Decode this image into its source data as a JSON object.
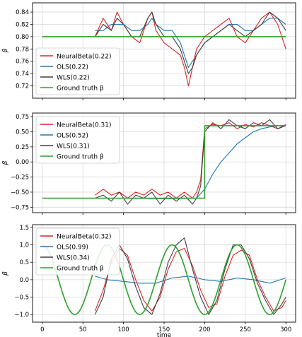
{
  "figure": {
    "xlabel": "time",
    "ylabel": "β",
    "colors": {
      "neural": "#d62728",
      "ols": "#1f77b4",
      "wls": "#3f3f3f",
      "truth": "#2ca02c",
      "grid": "#d9d9d9",
      "frame": "#000000"
    }
  },
  "chart_data": [
    {
      "type": "line",
      "xlim": [
        -12,
        312
      ],
      "ylim": [
        0.7,
        0.855
      ],
      "xticks": [
        0,
        50,
        100,
        150,
        200,
        250,
        300
      ],
      "yticks": [
        0.72,
        0.74,
        0.76,
        0.78,
        0.8,
        0.82,
        0.84
      ],
      "ytick_labels": [
        "0.72",
        "0.74",
        "0.76",
        "0.78",
        "0.80",
        "0.82",
        "0.84"
      ],
      "grid": true,
      "legend_placement": "lower-left",
      "ylabel": "β",
      "series": [
        {
          "name": "NeuralBeta(0.22)",
          "color_key": "neural",
          "x": [
            65,
            75,
            85,
            92,
            100,
            110,
            120,
            130,
            135,
            140,
            150,
            160,
            170,
            175,
            180,
            185,
            190,
            200,
            210,
            220,
            230,
            240,
            250,
            260,
            270,
            280,
            290,
            300
          ],
          "y": [
            0.8,
            0.83,
            0.81,
            0.84,
            0.82,
            0.8,
            0.79,
            0.83,
            0.84,
            0.81,
            0.79,
            0.78,
            0.77,
            0.75,
            0.72,
            0.75,
            0.78,
            0.8,
            0.81,
            0.82,
            0.83,
            0.8,
            0.79,
            0.81,
            0.83,
            0.84,
            0.82,
            0.78
          ]
        },
        {
          "name": "OLS(0.22)",
          "color_key": "ols",
          "x": [
            65,
            75,
            85,
            92,
            100,
            110,
            120,
            130,
            135,
            140,
            150,
            160,
            170,
            175,
            180,
            185,
            190,
            200,
            210,
            220,
            230,
            240,
            250,
            260,
            270,
            280,
            290,
            300
          ],
          "y": [
            0.81,
            0.81,
            0.82,
            0.82,
            0.82,
            0.81,
            0.81,
            0.82,
            0.83,
            0.82,
            0.81,
            0.81,
            0.79,
            0.77,
            0.75,
            0.76,
            0.77,
            0.79,
            0.8,
            0.81,
            0.82,
            0.82,
            0.81,
            0.81,
            0.82,
            0.83,
            0.83,
            0.82
          ]
        },
        {
          "name": "WLS(0.22)",
          "color_key": "wls",
          "x": [
            65,
            75,
            85,
            92,
            100,
            110,
            120,
            130,
            135,
            140,
            150,
            160,
            170,
            175,
            180,
            185,
            190,
            200,
            210,
            220,
            230,
            240,
            250,
            260,
            270,
            280,
            290,
            300
          ],
          "y": [
            0.8,
            0.82,
            0.81,
            0.83,
            0.82,
            0.8,
            0.8,
            0.83,
            0.84,
            0.82,
            0.8,
            0.8,
            0.78,
            0.76,
            0.74,
            0.75,
            0.77,
            0.79,
            0.8,
            0.81,
            0.82,
            0.81,
            0.8,
            0.81,
            0.82,
            0.84,
            0.83,
            0.81
          ]
        },
        {
          "name": "Ground truth β",
          "color_key": "truth",
          "x": [
            0,
            300
          ],
          "y": [
            0.8,
            0.8
          ]
        }
      ]
    },
    {
      "type": "line",
      "xlim": [
        -12,
        312
      ],
      "ylim": [
        -0.84,
        0.81
      ],
      "xticks": [
        0,
        50,
        100,
        150,
        200,
        250,
        300
      ],
      "yticks": [
        -0.75,
        -0.5,
        -0.25,
        0.0,
        0.25,
        0.5,
        0.75
      ],
      "ytick_labels": [
        "−0.75",
        "−0.50",
        "−0.25",
        "0.00",
        "0.25",
        "0.50",
        "0.75"
      ],
      "grid": true,
      "legend_placement": "upper-left",
      "ylabel": "β",
      "series": [
        {
          "name": "NeuralBeta(0.31)",
          "color_key": "neural",
          "x": [
            65,
            75,
            85,
            95,
            105,
            115,
            125,
            135,
            145,
            155,
            165,
            175,
            185,
            190,
            195,
            200,
            210,
            220,
            230,
            240,
            250,
            260,
            270,
            280,
            290,
            300
          ],
          "y": [
            -0.55,
            -0.45,
            -0.55,
            -0.5,
            -0.6,
            -0.5,
            -0.55,
            -0.45,
            -0.55,
            -0.5,
            -0.6,
            -0.5,
            -0.6,
            -0.5,
            -0.3,
            0.55,
            0.62,
            0.6,
            0.65,
            0.55,
            0.62,
            0.58,
            0.65,
            0.6,
            0.55,
            0.62
          ]
        },
        {
          "name": "OLS(0.52)",
          "color_key": "ols",
          "x": [
            65,
            100,
            150,
            190,
            200,
            210,
            220,
            230,
            240,
            250,
            260,
            270,
            280,
            290,
            300
          ],
          "y": [
            -0.6,
            -0.6,
            -0.61,
            -0.6,
            -0.45,
            -0.2,
            0.0,
            0.15,
            0.3,
            0.4,
            0.5,
            0.55,
            0.58,
            0.6,
            0.6
          ]
        },
        {
          "name": "WLS(0.31)",
          "color_key": "wls",
          "x": [
            65,
            75,
            85,
            95,
            105,
            115,
            125,
            135,
            145,
            155,
            165,
            175,
            185,
            190,
            195,
            200,
            210,
            220,
            230,
            240,
            250,
            260,
            270,
            280,
            290,
            300
          ],
          "y": [
            -0.6,
            -0.55,
            -0.65,
            -0.5,
            -0.7,
            -0.55,
            -0.6,
            -0.5,
            -0.7,
            -0.55,
            -0.65,
            -0.55,
            -0.7,
            -0.6,
            -0.4,
            0.5,
            0.65,
            0.55,
            0.7,
            0.6,
            0.55,
            0.65,
            0.6,
            0.7,
            0.55,
            0.6
          ]
        },
        {
          "name": "Ground truth β",
          "color_key": "truth",
          "x": [
            0,
            200,
            200,
            300
          ],
          "y": [
            -0.6,
            -0.6,
            0.6,
            0.6
          ]
        }
      ]
    },
    {
      "type": "line",
      "xlim": [
        -12,
        312
      ],
      "ylim": [
        -1.22,
        1.58
      ],
      "xticks": [
        0,
        50,
        100,
        150,
        200,
        250,
        300
      ],
      "xtick_labels": [
        "0",
        "50",
        "100",
        "150",
        "200",
        "250",
        "300"
      ],
      "yticks": [
        -1.0,
        -0.5,
        0.0,
        0.5,
        1.0,
        1.5
      ],
      "ytick_labels": [
        "−1.0",
        "−0.5",
        "0.0",
        "0.5",
        "1.0",
        "1.5"
      ],
      "grid": true,
      "legend_placement": "upper-left",
      "ylabel": "β",
      "xlabel": "time",
      "series": [
        {
          "name": "NeuralBeta(0.32)",
          "color_key": "neural",
          "x": [
            65,
            75,
            85,
            95,
            105,
            115,
            125,
            135,
            145,
            155,
            165,
            175,
            185,
            195,
            205,
            215,
            225,
            235,
            245,
            255,
            265,
            275,
            285,
            295,
            300
          ],
          "y": [
            -0.9,
            -0.3,
            0.5,
            0.9,
            0.7,
            0.0,
            -0.6,
            -0.9,
            -0.5,
            0.3,
            0.8,
            0.9,
            0.4,
            -0.3,
            -0.8,
            -0.7,
            0.1,
            0.7,
            0.85,
            0.7,
            0.0,
            -0.5,
            -0.9,
            -0.8,
            -0.6
          ]
        },
        {
          "name": "OLS(0.99)",
          "color_key": "ols",
          "x": [
            65,
            80,
            100,
            120,
            140,
            160,
            180,
            200,
            220,
            240,
            260,
            280,
            300
          ],
          "y": [
            0.1,
            0.0,
            -0.05,
            -0.1,
            -0.1,
            0.05,
            0.1,
            0.0,
            -0.05,
            0.05,
            0.0,
            -0.1,
            0.05
          ]
        },
        {
          "name": "WLS(0.34)",
          "color_key": "wls",
          "x": [
            65,
            75,
            85,
            95,
            105,
            115,
            125,
            135,
            145,
            155,
            165,
            175,
            185,
            195,
            205,
            215,
            225,
            235,
            245,
            255,
            265,
            275,
            285,
            295,
            300
          ],
          "y": [
            -1.0,
            -0.5,
            0.6,
            1.0,
            0.6,
            -0.2,
            -0.8,
            -1.0,
            -0.4,
            0.5,
            1.0,
            1.2,
            0.3,
            -0.5,
            -1.0,
            -0.6,
            0.3,
            1.0,
            1.0,
            0.6,
            -0.1,
            -0.6,
            -1.0,
            -0.7,
            -0.5
          ]
        },
        {
          "name": "Ground truth β",
          "color_key": "truth",
          "fn": "cos",
          "amplitude": 1.0,
          "period": 80,
          "phase_zero_at": 0,
          "x_range": [
            0,
            300
          ]
        }
      ]
    }
  ]
}
